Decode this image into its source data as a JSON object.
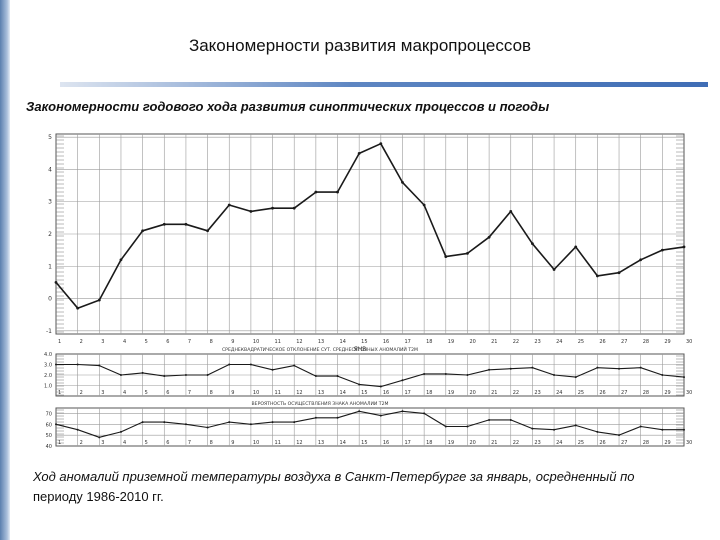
{
  "slide": {
    "title": "Закономерности развития макропроцессов",
    "subtitle": "Закономерности годового хода развития синоптических процессов и погоды",
    "caption_italic": "Ход аномалий приземной температуры воздуха в Санкт-Петербурге за январь, осредненный по",
    "caption_rest": "периоду 1986-2010 гг."
  },
  "chart_data": [
    {
      "type": "line",
      "x": [
        1,
        2,
        3,
        4,
        5,
        6,
        7,
        8,
        9,
        10,
        11,
        12,
        13,
        14,
        15,
        16,
        17,
        18,
        19,
        20,
        21,
        22,
        23,
        24,
        25,
        26,
        27,
        28,
        29,
        30
      ],
      "series": [
        {
          "values": [
            0.5,
            -0.3,
            -0.05,
            1.2,
            2.1,
            2.3,
            2.3,
            2.1,
            2.9,
            2.7,
            2.8,
            2.8,
            3.3,
            3.3,
            4.5,
            4.8,
            3.6,
            2.9,
            1.3,
            1.4,
            1.9,
            2.7,
            1.7,
            0.9,
            1.6,
            0.7,
            0.8,
            1.2,
            1.5,
            1.6
          ]
        }
      ],
      "y_ticks": [
        "-1",
        "0",
        "1",
        "2",
        "3",
        "4",
        "5"
      ],
      "ylim": [
        -1.1,
        5.1
      ],
      "x_ticks": [
        "1",
        "2",
        "3",
        "4",
        "5",
        "6",
        "7",
        "8",
        "9",
        "10",
        "11",
        "12",
        "13",
        "14",
        "15",
        "16",
        "17",
        "18",
        "19",
        "20",
        "21",
        "22",
        "23",
        "24",
        "25",
        "26",
        "27",
        "28",
        "29",
        "30"
      ],
      "xlabel": "ЯНВ",
      "grid": true
    },
    {
      "type": "line",
      "x": [
        1,
        2,
        3,
        4,
        5,
        6,
        7,
        8,
        9,
        10,
        11,
        12,
        13,
        14,
        15,
        16,
        17,
        18,
        19,
        20,
        21,
        22,
        23,
        24,
        25,
        26,
        27,
        28,
        29,
        30
      ],
      "series": [
        {
          "values": [
            3.0,
            3.0,
            2.9,
            2.0,
            2.2,
            1.9,
            2.0,
            2.0,
            3.0,
            3.0,
            2.5,
            2.9,
            1.9,
            1.9,
            1.1,
            0.9,
            1.5,
            2.1,
            2.1,
            2.0,
            2.5,
            2.6,
            2.7,
            2.0,
            1.8,
            2.7,
            2.6,
            2.7,
            2.0,
            1.8
          ]
        }
      ],
      "y_ticks": [
        "1.0",
        "2.0",
        "3.0",
        "4.0"
      ],
      "ylim": [
        0,
        4
      ],
      "caption": "СРЕДНЕКВАДРАТИЧЕСКОЕ ОТКЛОНЕНИЕ  СУТ. СРЕДНЕСУТОЧНЫХ АНОМАЛИЙ Т2М"
    },
    {
      "type": "line",
      "x": [
        1,
        2,
        3,
        4,
        5,
        6,
        7,
        8,
        9,
        10,
        11,
        12,
        13,
        14,
        15,
        16,
        17,
        18,
        19,
        20,
        21,
        22,
        23,
        24,
        25,
        26,
        27,
        28,
        29,
        30
      ],
      "series": [
        {
          "values": [
            60,
            55,
            48,
            53,
            62,
            62,
            60,
            57,
            62,
            60,
            62,
            62,
            66,
            66,
            72,
            68,
            72,
            70,
            58,
            58,
            64,
            64,
            56,
            55,
            59,
            53,
            50,
            58,
            55,
            55
          ]
        }
      ],
      "y_ticks": [
        "40",
        "50",
        "60",
        "70"
      ],
      "ylim": [
        40,
        75
      ],
      "caption": "ВЕРОЯТНОСТЬ ОСУЩЕСТВЛЕНИЯ ЗНАКА АНОМАЛИИ Т2М"
    }
  ],
  "colors": {
    "accent": "#3f6db5",
    "line": "#1a1a1a",
    "grid": "#9a9a9a"
  }
}
